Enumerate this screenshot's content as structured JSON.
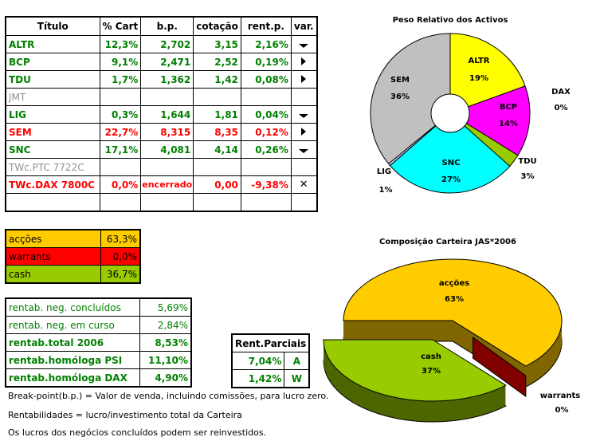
{
  "holdings": {
    "headers": [
      "Título",
      "% Cart",
      "b.p.",
      "cotação",
      "rent.p.",
      "var."
    ],
    "rows": [
      {
        "titulo": "ALTR",
        "cart": "12,3%",
        "bp": "2,702",
        "cotacao": "3,15",
        "rent": "2,16%",
        "var": "down-triangle-icon",
        "color": "g"
      },
      {
        "titulo": "BCP",
        "cart": "9,1%",
        "bp": "2,471",
        "cotacao": "2,52",
        "rent": "0,19%",
        "var": "right-triangle-icon",
        "color": "g"
      },
      {
        "titulo": "TDU",
        "cart": "1,7%",
        "bp": "1,362",
        "cotacao": "1,42",
        "rent": "0,08%",
        "var": "right-triangle-icon",
        "color": "g"
      },
      {
        "titulo": "JMT",
        "cart": "",
        "bp": "",
        "cotacao": "",
        "rent": "",
        "var": "",
        "color": "gr"
      },
      {
        "titulo": "LIG",
        "cart": "0,3%",
        "bp": "1,644",
        "cotacao": "1,81",
        "rent": "0,04%",
        "var": "down-triangle-icon",
        "color": "g"
      },
      {
        "titulo": "SEM",
        "cart": "22,7%",
        "bp": "8,315",
        "cotacao": "8,35",
        "rent": "0,12%",
        "var": "right-triangle-icon",
        "color": "r"
      },
      {
        "titulo": "SNC",
        "cart": "17,1%",
        "bp": "4,081",
        "cotacao": "4,14",
        "rent": "0,26%",
        "var": "down-triangle-icon",
        "color": "g"
      },
      {
        "titulo": "TWc.PTC 7722C",
        "cart": "",
        "bp": "",
        "cotacao": "",
        "rent": "",
        "var": "",
        "color": "gr"
      },
      {
        "titulo": "TWc.DAX 7800C",
        "cart": "0,0%",
        "bp": "encerrado",
        "cotacao": "0,00",
        "rent": "-9,38%",
        "var": "x-icon",
        "color": "r"
      },
      {
        "titulo": "",
        "cart": "",
        "bp": "",
        "cotacao": "",
        "rent": "",
        "var": "",
        "color": "g"
      }
    ]
  },
  "allocation": [
    {
      "label": "acções",
      "value": "63,3%",
      "color": "#ffcc00"
    },
    {
      "label": "warrants",
      "value": "0,0%",
      "color": "#ff0000"
    },
    {
      "label": "cash",
      "value": "36,7%",
      "color": "#99cc00"
    }
  ],
  "rentab": [
    {
      "label": "rentab. neg. concluídos",
      "value": "5,69%",
      "bold": false
    },
    {
      "label": "rentab. neg. em curso",
      "value": "2,84%",
      "bold": false
    },
    {
      "label": "rentab.total 2006",
      "value": "8,53%",
      "bold": true
    },
    {
      "label": "rentab.homóloga PSI",
      "value": "11,10%",
      "bold": true
    },
    {
      "label": "rentab.homóloga DAX",
      "value": "4,90%",
      "bold": true
    }
  ],
  "rent_parciais": {
    "header": "Rent.Parciais",
    "rows": [
      {
        "value": "7,04%",
        "tag": "A"
      },
      {
        "value": "1,42%",
        "tag": "W"
      }
    ]
  },
  "notes": [
    "Break-point(b.p.) = Valor de venda, incluindo comissões, para lucro zero.",
    "Rentabilidades = lucro/investimento total da Carteira",
    "Os lucros dos negócios concluídos podem ser reinvestidos."
  ],
  "chart_data": [
    {
      "type": "pie",
      "title": "Peso Relativo dos Activos",
      "donut": true,
      "slices": [
        {
          "name": "ALTR",
          "value": 12.3,
          "label": "19%",
          "color": "#ffff00"
        },
        {
          "name": "BCP",
          "value": 9.1,
          "label": "14%",
          "color": "#ff00ff"
        },
        {
          "name": "TDU",
          "value": 1.7,
          "label": "3%",
          "color": "#99cc00"
        },
        {
          "name": "SNC",
          "value": 17.1,
          "label": "27%",
          "color": "#00ffff"
        },
        {
          "name": "LIG",
          "value": 0.3,
          "label": "1%",
          "color": "#ccccff"
        },
        {
          "name": "SEM",
          "value": 22.7,
          "label": "36%",
          "color": "#c0c0c0"
        },
        {
          "name": "DAX",
          "value": 0,
          "label": "0%",
          "color": "#ff0000"
        }
      ]
    },
    {
      "type": "pie",
      "title": "Composição Carteira JAS*2006",
      "3d": true,
      "slices": [
        {
          "name": "acções",
          "value": 63.3,
          "label": "63%",
          "color": "#ffcc00",
          "side": "#806600"
        },
        {
          "name": "warrants",
          "value": 0,
          "label": "0%",
          "color": "#800000",
          "side": "#800000"
        },
        {
          "name": "cash",
          "value": 36.7,
          "label": "37%",
          "color": "#99cc00",
          "side": "#4d6600"
        }
      ]
    }
  ]
}
